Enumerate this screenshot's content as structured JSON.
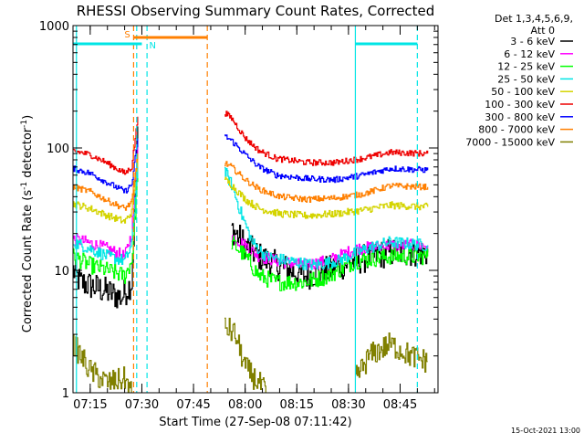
{
  "chart_data": {
    "type": "line",
    "title": "RHESSI Observing Summary Count Rates, Corrected",
    "xlabel": "Start Time (27-Sep-08 07:11:42)",
    "ylabel_main": "Corrected Count Rate (s",
    "ylabel_sup1": "-1",
    "ylabel_mid": " detector",
    "ylabel_sup2": "-1",
    "ylabel_end": ")",
    "yscale": "log",
    "ylim": [
      1,
      1000
    ],
    "xlim_min": [
      7.1667,
      8.9333
    ],
    "x_ticks": [
      {
        "label": "07:15",
        "v": 7.25
      },
      {
        "label": "07:30",
        "v": 7.5
      },
      {
        "label": "07:45",
        "v": 7.75
      },
      {
        "label": "08:00",
        "v": 8.0
      },
      {
        "label": "08:15",
        "v": 8.25
      },
      {
        "label": "08:30",
        "v": 8.5
      },
      {
        "label": "08:45",
        "v": 8.75
      }
    ],
    "y_ticks": [
      {
        "label": "1",
        "v": 1
      },
      {
        "label": "10",
        "v": 10
      },
      {
        "label": "100",
        "v": 100
      },
      {
        "label": "1000",
        "v": 1000
      }
    ],
    "legend": {
      "header1": "Det 1,3,4,5,6,9,",
      "header2": "Att 0",
      "position": "right"
    },
    "stamp": "15-Oct-2021 13:00",
    "bars": [
      {
        "label": "S",
        "color": "#ff7f00",
        "x0": 7.46,
        "x1": 7.8167,
        "level": "upper"
      },
      {
        "label": "N",
        "color": "#00e5e5",
        "x0": 7.1667,
        "x1": 7.5,
        "level": "lower"
      },
      {
        "label": "",
        "color": "#00e5e5",
        "x0": 8.5333,
        "x1": 8.8333,
        "level": "lower"
      }
    ],
    "vlines": [
      {
        "x": 7.1833,
        "color": "#00e5e5",
        "dash": false
      },
      {
        "x": 7.475,
        "color": "#00e5e5",
        "dash": true
      },
      {
        "x": 7.525,
        "color": "#00e5e5",
        "dash": true
      },
      {
        "x": 7.46,
        "color": "#ff7f00",
        "dash": true
      },
      {
        "x": 7.8167,
        "color": "#ff7f00",
        "dash": true
      },
      {
        "x": 8.5333,
        "color": "#00e5e5",
        "dash": false
      },
      {
        "x": 8.8333,
        "color": "#00e5e5",
        "dash": true
      }
    ],
    "series": [
      {
        "name": "3 - 6 keV",
        "color": "#000000",
        "noise": 0.12,
        "segments": [
          [
            [
              7.1667,
              10
            ],
            [
              7.2,
              8
            ],
            [
              7.3,
              7
            ],
            [
              7.4,
              6
            ],
            [
              7.45,
              8
            ],
            [
              7.48,
              150
            ]
          ],
          [
            [
              7.9333,
              22
            ],
            [
              8.0,
              16
            ],
            [
              8.0667,
              13
            ],
            [
              8.15,
              11
            ],
            [
              8.2833,
              9
            ],
            [
              8.4,
              10
            ],
            [
              8.5333,
              12
            ],
            [
              8.7,
              14
            ],
            [
              8.8833,
              14
            ]
          ]
        ]
      },
      {
        "name": "6 - 12 keV",
        "color": "#ff00ff",
        "noise": 0.05,
        "segments": [
          [
            [
              7.1667,
              18
            ],
            [
              7.2333,
              17
            ],
            [
              7.3333,
              15
            ],
            [
              7.4167,
              13
            ],
            [
              7.45,
              20
            ],
            [
              7.48,
              110
            ]
          ],
          [
            [
              7.9333,
              19
            ],
            [
              8.0,
              16
            ],
            [
              8.0667,
              13
            ],
            [
              8.15,
              12
            ],
            [
              8.2833,
              11
            ],
            [
              8.4,
              12
            ],
            [
              8.5333,
              15
            ],
            [
              8.7,
              16
            ],
            [
              8.8833,
              16
            ]
          ]
        ]
      },
      {
        "name": "12 - 25 keV",
        "color": "#00ff00",
        "noise": 0.07,
        "segments": [
          [
            [
              7.1667,
              13
            ],
            [
              7.25,
              11
            ],
            [
              7.3333,
              10
            ],
            [
              7.4167,
              9
            ],
            [
              7.45,
              12
            ],
            [
              7.48,
              60
            ]
          ],
          [
            [
              7.9333,
              17
            ],
            [
              8.0,
              13
            ],
            [
              8.0667,
              9
            ],
            [
              8.15,
              8
            ],
            [
              8.2833,
              8
            ],
            [
              8.4,
              9
            ],
            [
              8.5333,
              12
            ],
            [
              8.7,
              13
            ],
            [
              8.8833,
              13
            ]
          ]
        ]
      },
      {
        "name": "25 - 50 keV",
        "color": "#00e5e5",
        "noise": 0.05,
        "segments": [
          [
            [
              7.1667,
              17
            ],
            [
              7.25,
              15
            ],
            [
              7.3333,
              13
            ],
            [
              7.4167,
              12
            ],
            [
              7.45,
              16
            ],
            [
              7.48,
              80
            ]
          ],
          [
            [
              7.9,
              65
            ],
            [
              7.9333,
              50
            ],
            [
              7.9833,
              28
            ],
            [
              8.0333,
              17
            ],
            [
              8.1,
              13
            ],
            [
              8.2,
              12
            ],
            [
              8.3333,
              11
            ],
            [
              8.45,
              12
            ],
            [
              8.5833,
              15
            ],
            [
              8.7,
              17
            ],
            [
              8.8833,
              16
            ]
          ]
        ]
      },
      {
        "name": "50 - 100 keV",
        "color": "#d4d400",
        "noise": 0.03,
        "segments": [
          [
            [
              7.1667,
              35
            ],
            [
              7.25,
              32
            ],
            [
              7.3333,
              28
            ],
            [
              7.4167,
              25
            ],
            [
              7.45,
              30
            ],
            [
              7.48,
              85
            ]
          ],
          [
            [
              7.9,
              55
            ],
            [
              7.9333,
              50
            ],
            [
              8.0,
              38
            ],
            [
              8.0667,
              32
            ],
            [
              8.1667,
              29
            ],
            [
              8.3,
              28
            ],
            [
              8.4333,
              29
            ],
            [
              8.5667,
              31
            ],
            [
              8.7,
              34
            ],
            [
              8.8833,
              33
            ]
          ]
        ]
      },
      {
        "name": "100 - 300 keV",
        "color": "#ee0000",
        "noise": 0.025,
        "segments": [
          [
            [
              7.1667,
              95
            ],
            [
              7.25,
              88
            ],
            [
              7.3333,
              75
            ],
            [
              7.4167,
              62
            ],
            [
              7.45,
              70
            ],
            [
              7.48,
              180
            ]
          ],
          [
            [
              7.9,
              195
            ],
            [
              7.9333,
              175
            ],
            [
              8.0,
              120
            ],
            [
              8.0667,
              95
            ],
            [
              8.15,
              82
            ],
            [
              8.3,
              76
            ],
            [
              8.4333,
              76
            ],
            [
              8.5667,
              82
            ],
            [
              8.7,
              92
            ],
            [
              8.8833,
              90
            ]
          ]
        ]
      },
      {
        "name": "300 - 800 keV",
        "color": "#0000ff",
        "noise": 0.025,
        "segments": [
          [
            [
              7.1667,
              68
            ],
            [
              7.25,
              62
            ],
            [
              7.3333,
              52
            ],
            [
              7.4167,
              44
            ],
            [
              7.45,
              50
            ],
            [
              7.48,
              120
            ]
          ],
          [
            [
              7.9,
              125
            ],
            [
              7.9333,
              115
            ],
            [
              8.0,
              88
            ],
            [
              8.0667,
              70
            ],
            [
              8.15,
              60
            ],
            [
              8.3,
              56
            ],
            [
              8.4333,
              55
            ],
            [
              8.5667,
              60
            ],
            [
              8.7,
              68
            ],
            [
              8.8833,
              66
            ]
          ]
        ]
      },
      {
        "name": "800 - 7000 keV",
        "color": "#ff7f00",
        "noise": 0.025,
        "segments": [
          [
            [
              7.1667,
              48
            ],
            [
              7.25,
              44
            ],
            [
              7.3333,
              37
            ],
            [
              7.4167,
              32
            ],
            [
              7.45,
              36
            ],
            [
              7.48,
              90
            ]
          ],
          [
            [
              7.9,
              75
            ],
            [
              7.9333,
              70
            ],
            [
              8.0,
              55
            ],
            [
              8.0667,
              46
            ],
            [
              8.1667,
              40
            ],
            [
              8.3,
              38
            ],
            [
              8.4333,
              39
            ],
            [
              8.5667,
              42
            ],
            [
              8.7,
              49
            ],
            [
              8.8833,
              48
            ]
          ]
        ]
      },
      {
        "name": "7000 - 15000 keV",
        "color": "#808000",
        "noise": 0.1,
        "segments": [
          [
            [
              7.1667,
              2.5
            ],
            [
              7.25,
              1.5
            ],
            [
              7.3333,
              1.2
            ],
            [
              7.4167,
              1.3
            ],
            [
              7.45,
              1
            ]
          ],
          [
            [
              7.9,
              3.5
            ],
            [
              7.95,
              3
            ],
            [
              8.0,
              1.6
            ],
            [
              8.0833,
              1.1
            ],
            [
              8.1,
              1
            ]
          ],
          [
            [
              8.5333,
              1.3
            ],
            [
              8.6,
              2
            ],
            [
              8.7,
              2.5
            ],
            [
              8.8,
              2
            ],
            [
              8.8833,
              1.8
            ]
          ]
        ]
      }
    ]
  }
}
